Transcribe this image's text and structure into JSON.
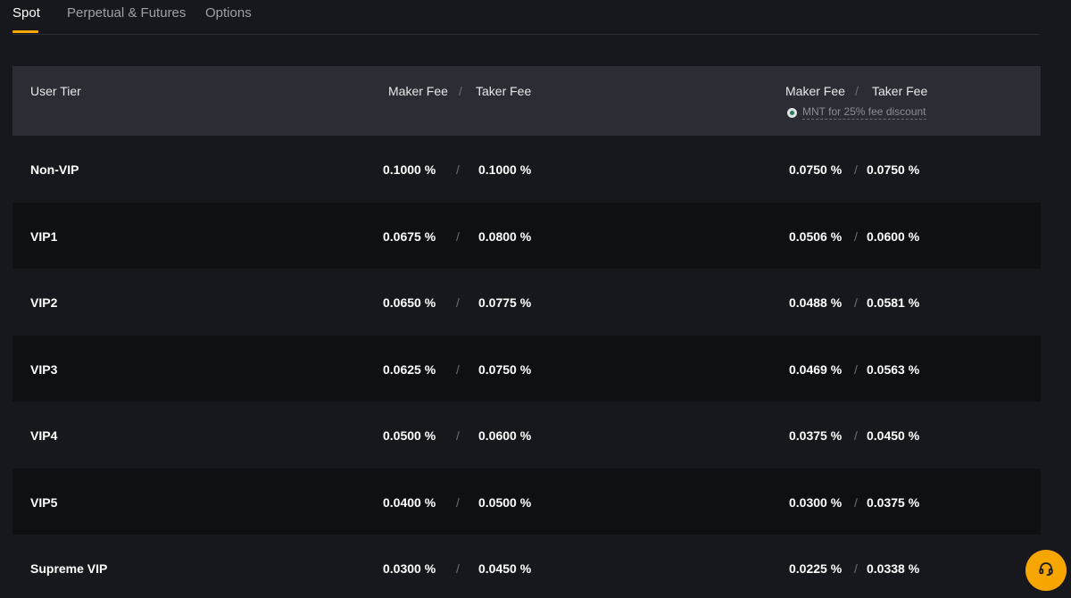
{
  "tabs": [
    {
      "label": "Spot",
      "active": true
    },
    {
      "label": "Perpetual & Futures",
      "active": false
    },
    {
      "label": "Options",
      "active": false
    }
  ],
  "table": {
    "header": {
      "user_tier": "User Tier",
      "group1_maker": "Maker Fee",
      "group1_sep": "/",
      "group1_taker": "Taker Fee",
      "group2_maker": "Maker Fee",
      "group2_sep": "/",
      "group2_taker": "Taker Fee",
      "discount_note": "MNT for 25% fee discount"
    },
    "rows": [
      {
        "tier": "Non-VIP",
        "maker": "0.1000 %",
        "taker": "0.1000 %",
        "mnt_maker": "0.0750 %",
        "mnt_taker": "0.0750 %"
      },
      {
        "tier": "VIP1",
        "maker": "0.0675 %",
        "taker": "0.0800 %",
        "mnt_maker": "0.0506 %",
        "mnt_taker": "0.0600 %"
      },
      {
        "tier": "VIP2",
        "maker": "0.0650 %",
        "taker": "0.0775 %",
        "mnt_maker": "0.0488 %",
        "mnt_taker": "0.0581 %"
      },
      {
        "tier": "VIP3",
        "maker": "0.0625 %",
        "taker": "0.0750 %",
        "mnt_maker": "0.0469 %",
        "mnt_taker": "0.0563 %"
      },
      {
        "tier": "VIP4",
        "maker": "0.0500 %",
        "taker": "0.0600 %",
        "mnt_maker": "0.0375 %",
        "mnt_taker": "0.0450 %"
      },
      {
        "tier": "VIP5",
        "maker": "0.0400 %",
        "taker": "0.0500 %",
        "mnt_maker": "0.0300 %",
        "mnt_taker": "0.0375 %"
      },
      {
        "tier": "Supreme VIP",
        "maker": "0.0300 %",
        "taker": "0.0450 %",
        "mnt_maker": "0.0225 %",
        "mnt_taker": "0.0338 %"
      }
    ],
    "row_sep": "/"
  },
  "icons": {
    "discount": "mnt-token-icon",
    "support": "headset-icon"
  },
  "colors": {
    "accent": "#f7a600",
    "background": "#17181e",
    "header_bg": "#2a2d33",
    "alt_row_bg": "#0f1013"
  }
}
